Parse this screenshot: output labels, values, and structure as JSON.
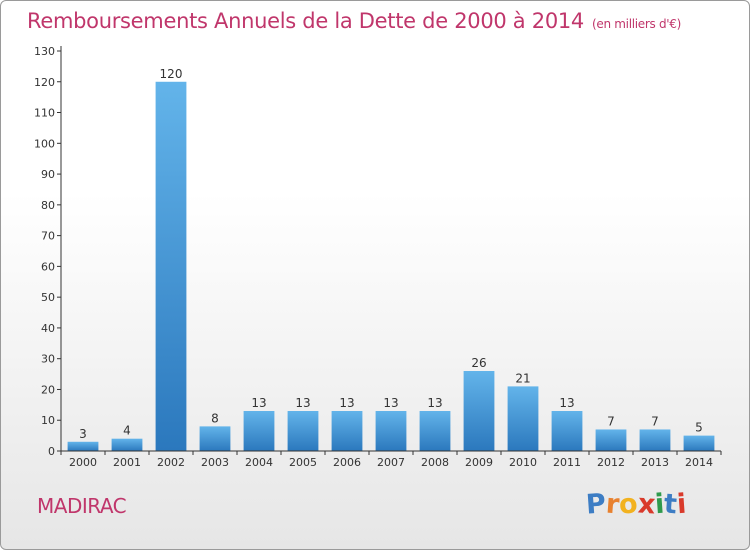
{
  "header": {
    "title": "Remboursements Annuels de la Dette de 2000 à 2014",
    "subtitle": "(en milliers d'€)"
  },
  "footer": {
    "town": "MADIRAC",
    "brand_letters": [
      "P",
      "r",
      "o",
      "x",
      "i",
      "t",
      "i"
    ],
    "brand_colors": [
      "#3d7dc4",
      "#e8812f",
      "#f2b21f",
      "#d93a2b",
      "#2f9a4c",
      "#3d7dc4",
      "#d93a2b"
    ]
  },
  "colors": {
    "bar_top": "#63b4ea",
    "bar_bottom": "#2b78bd",
    "axis": "#333333",
    "grid": "#d9d9d9",
    "accent": "#c0366b"
  },
  "chart_data": {
    "type": "bar",
    "title": "Remboursements Annuels de la Dette de 2000 à 2014",
    "subtitle": "(en milliers d'€)",
    "categories": [
      "2000",
      "2001",
      "2002",
      "2003",
      "2004",
      "2005",
      "2006",
      "2007",
      "2008",
      "2009",
      "2010",
      "2011",
      "2012",
      "2013",
      "2014"
    ],
    "values": [
      3,
      4,
      120,
      8,
      13,
      13,
      13,
      13,
      13,
      26,
      21,
      13,
      7,
      7,
      5
    ],
    "ylim": [
      0,
      130
    ],
    "yticks": [
      0,
      10,
      20,
      30,
      40,
      50,
      60,
      70,
      80,
      90,
      100,
      110,
      120,
      130
    ],
    "grid": false
  }
}
